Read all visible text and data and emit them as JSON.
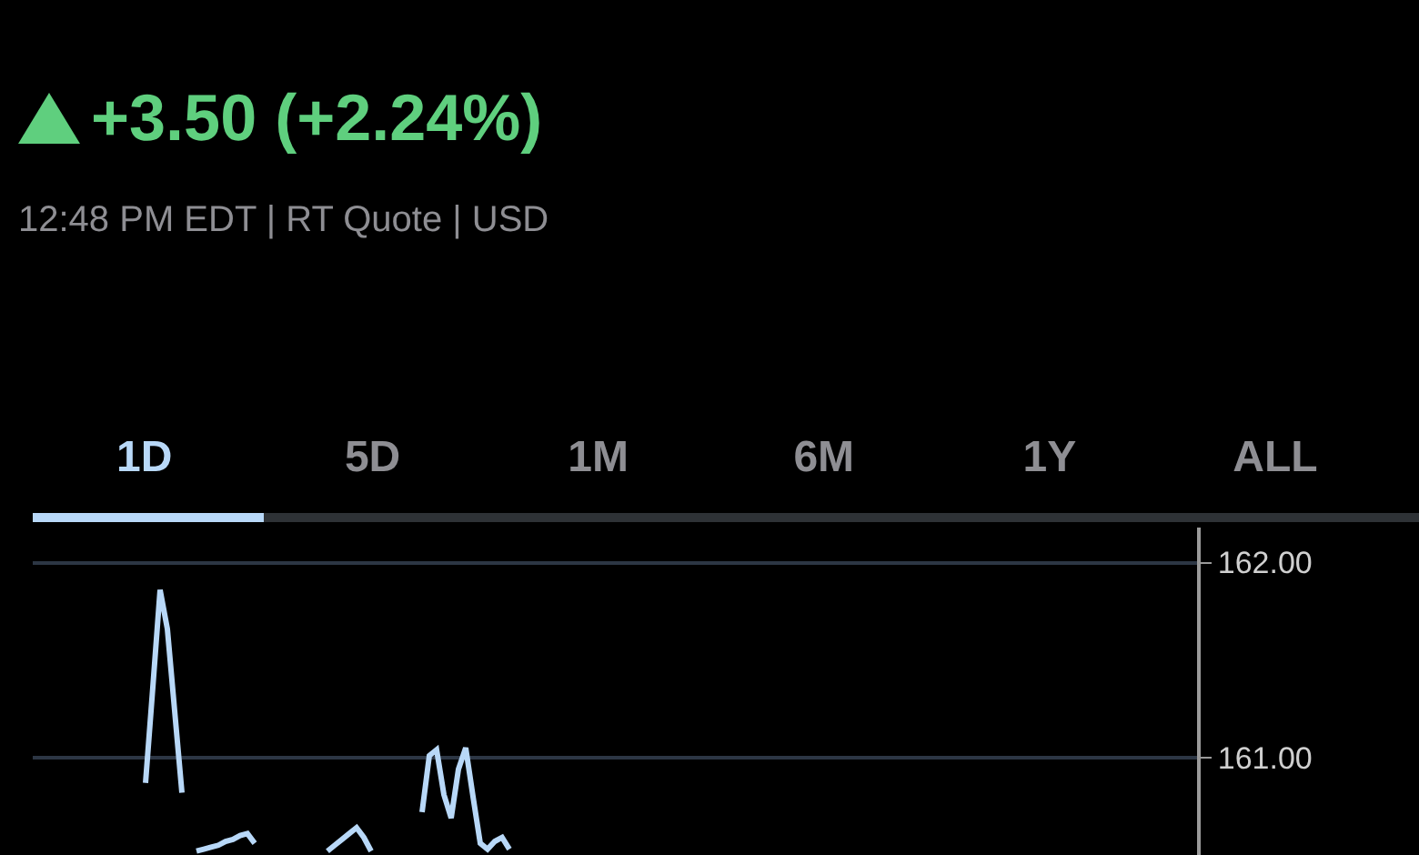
{
  "chart_data": {
    "type": "line",
    "subtitle": "12:48 PM EDT | RT Quote | USD",
    "annotations": [
      "+3.50 (+2.24%)",
      "1D",
      "5D",
      "1M",
      "6M",
      "1Y",
      "ALL"
    ],
    "categories": [
      null,
      null,
      null,
      null,
      null,
      null,
      null,
      null,
      null,
      null,
      null,
      null,
      null,
      null,
      null,
      null,
      null,
      null,
      null,
      null,
      null,
      null,
      null,
      null,
      null,
      null,
      null,
      null,
      null,
      null,
      null,
      null,
      null,
      null,
      null,
      null,
      null,
      null,
      null,
      null,
      null,
      null,
      null,
      null,
      null,
      null,
      null,
      null,
      null,
      null,
      null,
      null,
      null,
      null,
      null,
      null,
      null,
      null,
      null,
      null,
      null,
      null,
      null,
      null,
      null,
      null,
      null,
      null,
      null,
      null,
      null,
      null,
      null,
      null,
      null,
      null,
      null,
      null,
      null,
      null,
      null,
      null,
      null,
      null,
      null,
      null,
      null,
      null,
      null,
      null,
      null,
      null,
      null,
      null,
      null,
      null,
      null,
      null,
      null,
      null,
      null,
      null,
      null,
      null,
      null,
      null,
      null,
      null,
      null,
      null,
      null,
      null,
      null,
      null,
      null,
      null,
      null,
      null,
      null,
      null,
      null,
      null,
      null,
      null,
      null,
      null,
      null,
      null,
      null,
      null,
      null,
      null,
      null,
      null,
      null,
      null,
      null,
      null,
      null,
      null,
      null,
      null,
      null,
      null,
      null,
      null,
      null,
      null,
      null,
      null,
      null,
      null,
      null,
      null,
      null,
      null,
      null,
      null,
      null,
      null
    ],
    "series": [
      {
        "color": "#b8d8f8",
        "values": [
          null,
          null,
          null,
          null,
          null,
          null,
          null,
          null,
          null,
          null,
          null,
          null,
          null,
          null,
          null,
          160.87,
          161.36,
          161.86,
          161.66,
          161.24,
          160.82,
          null,
          160.52,
          160.53,
          160.54,
          160.55,
          160.57,
          160.58,
          160.6,
          160.61,
          160.56,
          null,
          null,
          null,
          null,
          null,
          null,
          null,
          null,
          null,
          160.52,
          160.55,
          160.58,
          160.61,
          160.64,
          160.59,
          160.52,
          null,
          null,
          null,
          null,
          null,
          null,
          160.72,
          161.01,
          161.04,
          160.81,
          160.69,
          160.94,
          161.05,
          160.8,
          160.56,
          160.53,
          160.57,
          160.59,
          160.53,
          null,
          null,
          null,
          null,
          null,
          null,
          null,
          null,
          null,
          null,
          null,
          null,
          null,
          null,
          null,
          null,
          null,
          null,
          null,
          null,
          null,
          null,
          null,
          null,
          null,
          null,
          null,
          null,
          null,
          null,
          null,
          null,
          null,
          null,
          null,
          null,
          null,
          null,
          null,
          null,
          null,
          null,
          null,
          null,
          null,
          null,
          null,
          null,
          null,
          null,
          null,
          null,
          null,
          null,
          null,
          null,
          null,
          null,
          null,
          null,
          null,
          null,
          null,
          null,
          null,
          null,
          null,
          null,
          null,
          null,
          null,
          null,
          null,
          null,
          null,
          null,
          null,
          null,
          null,
          null,
          null,
          null,
          null,
          null,
          null,
          null,
          null,
          null,
          null,
          null,
          null,
          null,
          null,
          null
        ]
      }
    ],
    "ylim": [
      160.5,
      162.18
    ],
    "yticks": [
      {
        "value": 161,
        "label": "161.00"
      },
      {
        "value": 162,
        "label": "162.00"
      }
    ],
    "grid": "y",
    "tick_labels": "y",
    "marker": "none",
    "line_style": "solid"
  }
}
